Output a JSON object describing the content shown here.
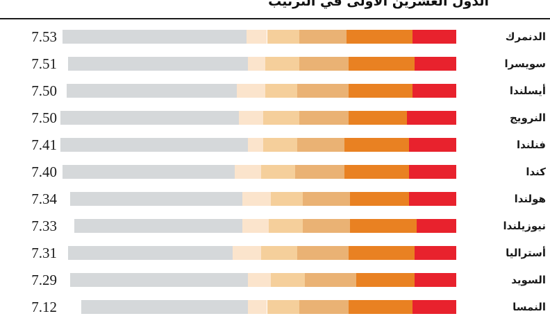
{
  "title": "الدول العشرين الأولى في الترتيب",
  "chart_data": {
    "type": "bar",
    "orientation": "horizontal stacked",
    "title": "الدول العشرين الأولى في الترتيب",
    "segment_colors": [
      "#e8222d",
      "#e98122",
      "#eab274",
      "#f5cf9b",
      "#fbe4cc",
      "#d5d8da"
    ],
    "rows": [
      {
        "country": "الدنمرك",
        "score": "7.53",
        "value": 7.53,
        "segments": [
          1.15,
          1.75,
          1.25,
          0.85,
          0.55,
          4.85
        ]
      },
      {
        "country": "سويسرا",
        "score": "7.51",
        "value": 7.51,
        "segments": [
          1.1,
          1.75,
          1.3,
          0.9,
          0.45,
          4.75
        ]
      },
      {
        "country": "أيسلندا",
        "score": "7.50",
        "value": 7.5,
        "segments": [
          1.15,
          1.7,
          1.35,
          0.85,
          0.75,
          4.5
        ]
      },
      {
        "country": "النرويج",
        "score": "7.50",
        "value": 7.5,
        "segments": [
          1.3,
          1.55,
          1.3,
          0.95,
          0.65,
          4.7
        ]
      },
      {
        "country": "فنلندا",
        "score": "7.41",
        "value": 7.41,
        "segments": [
          1.25,
          1.7,
          1.25,
          0.9,
          0.4,
          4.95
        ]
      },
      {
        "country": "كندا",
        "score": "7.40",
        "value": 7.4,
        "segments": [
          1.25,
          1.7,
          1.3,
          0.9,
          0.7,
          4.55
        ]
      },
      {
        "country": "هولندا",
        "score": "7.34",
        "value": 7.34,
        "segments": [
          1.25,
          1.55,
          1.25,
          0.85,
          0.75,
          4.55
        ]
      },
      {
        "country": "نيوزيلندا",
        "score": "7.33",
        "value": 7.33,
        "segments": [
          1.05,
          1.75,
          1.25,
          0.9,
          0.7,
          4.45
        ]
      },
      {
        "country": "أستراليا",
        "score": "7.31",
        "value": 7.31,
        "segments": [
          1.1,
          1.75,
          1.35,
          0.95,
          0.75,
          4.35
        ]
      },
      {
        "country": "السويد",
        "score": "7.29",
        "value": 7.29,
        "segments": [
          1.1,
          1.55,
          1.35,
          0.9,
          0.6,
          4.7
        ]
      },
      {
        "country": "النمسا",
        "score": "7.12",
        "value": 7.12,
        "segments": [
          1.15,
          1.7,
          1.3,
          0.85,
          0.5,
          4.4
        ]
      }
    ]
  }
}
